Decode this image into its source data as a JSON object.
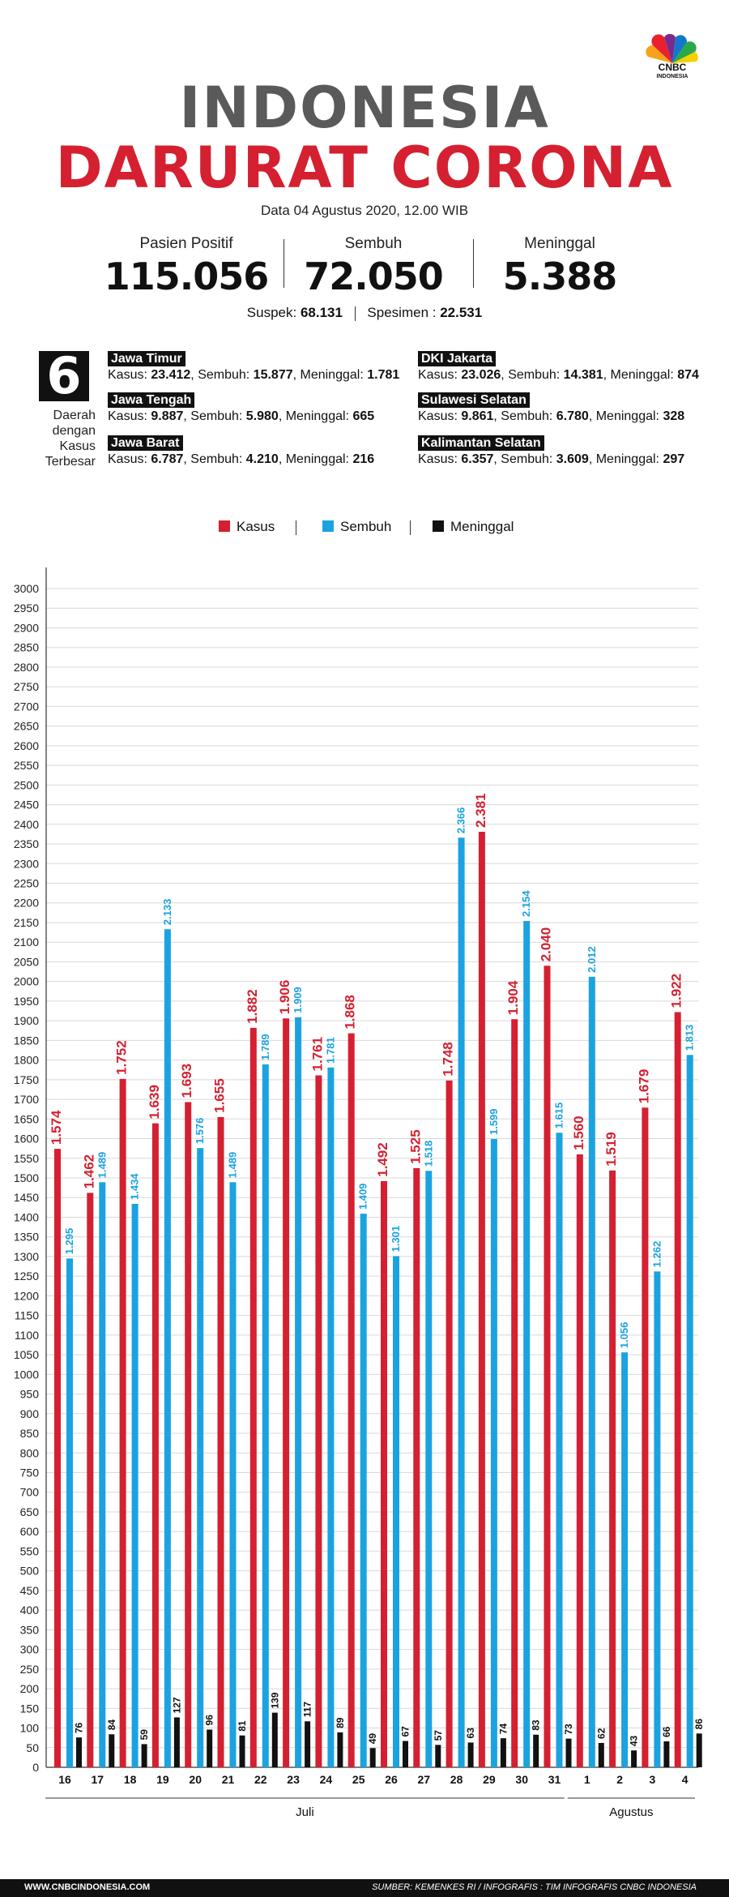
{
  "header": {
    "title_line1": "INDONESIA",
    "title_line2": "DARURAT CORONA",
    "date": "Data 04 Agustus 2020, 12.00 WIB",
    "logo_brand": "CNBC",
    "logo_sub": "INDONESIA"
  },
  "stats": [
    {
      "label": "Pasien Positif",
      "value": "115.056"
    },
    {
      "label": "Sembuh",
      "value": "72.050"
    },
    {
      "label": "Meninggal",
      "value": "5.388"
    }
  ],
  "secondary": {
    "suspek_label": "Suspek:",
    "suspek_value": "68.131",
    "spesimen_label": "Spesimen :",
    "spesimen_value": "22.531"
  },
  "regions_block": {
    "count": "6",
    "caption": [
      "Daerah",
      "dengan",
      "Kasus",
      "Terbesar"
    ],
    "regions": [
      {
        "name": "Jawa Timur",
        "kasus": "23.412",
        "sembuh": "15.877",
        "meninggal": "1.781"
      },
      {
        "name": "Jawa Tengah",
        "kasus": "9.887",
        "sembuh": "5.980",
        "meninggal": "665"
      },
      {
        "name": "Jawa Barat",
        "kasus": "6.787",
        "sembuh": "4.210",
        "meninggal": "216"
      },
      {
        "name": "DKI Jakarta",
        "kasus": "23.026",
        "sembuh": "14.381",
        "meninggal": "874"
      },
      {
        "name": "Sulawesi Selatan",
        "kasus": "9.861",
        "sembuh": "6.780",
        "meninggal": "328"
      },
      {
        "name": "Kalimantan Selatan",
        "kasus": "6.357",
        "sembuh": "3.609",
        "meninggal": "297"
      }
    ],
    "labels": {
      "kasus": "Kasus:",
      "sembuh": "Sembuh:",
      "meninggal": "Meninggal:"
    }
  },
  "chart_data": {
    "type": "bar",
    "categories": [
      "16",
      "17",
      "18",
      "19",
      "20",
      "21",
      "22",
      "23",
      "24",
      "25",
      "26",
      "27",
      "28",
      "29",
      "30",
      "31",
      "1",
      "2",
      "3",
      "4"
    ],
    "month_groups": [
      {
        "label": "Juli",
        "from": 0,
        "to": 15
      },
      {
        "label": "Agustus",
        "from": 16,
        "to": 19
      }
    ],
    "series": [
      {
        "name": "Kasus",
        "color": "#d42030",
        "values": [
          1574,
          1462,
          1752,
          1639,
          1693,
          1655,
          1882,
          1906,
          1761,
          1868,
          1492,
          1525,
          1748,
          2381,
          1904,
          2040,
          1560,
          1519,
          1679,
          1922
        ],
        "labels": [
          "1.574",
          "1.462",
          "1.752",
          "1.639",
          "1.693",
          "1.655",
          "1.882",
          "1.906",
          "1.761",
          "1.868",
          "1.492",
          "1.525",
          "1.748",
          "2.381",
          "1.904",
          "2.040",
          "1.560",
          "1.519",
          "1.679",
          "1.922"
        ]
      },
      {
        "name": "Sembuh",
        "color": "#1aa3e0",
        "values": [
          1295,
          1489,
          1434,
          2133,
          1576,
          1489,
          1789,
          1909,
          1781,
          1409,
          1301,
          1518,
          2366,
          1599,
          2154,
          1615,
          2012,
          1056,
          1262,
          1813
        ],
        "labels": [
          "1.295",
          "1.489",
          "1.434",
          "2.133",
          "1.576",
          "1.489",
          "1.789",
          "1.909",
          "1.781",
          "1.409",
          "1.301",
          "1.518",
          "2.366",
          "1.599",
          "2.154",
          "1.615",
          "2.012",
          "1.056",
          "1.262",
          "1.813"
        ]
      },
      {
        "name": "Meninggal",
        "color": "#111111",
        "values": [
          76,
          84,
          59,
          127,
          96,
          81,
          139,
          117,
          89,
          49,
          67,
          57,
          63,
          74,
          83,
          73,
          62,
          43,
          66,
          86
        ],
        "labels": [
          "76",
          "84",
          "59",
          "127",
          "96",
          "81",
          "139",
          "117",
          "89",
          "49",
          "67",
          "57",
          "63",
          "74",
          "83",
          "73",
          "62",
          "43",
          "66",
          "86"
        ]
      }
    ],
    "yticks": [
      0,
      50,
      100,
      150,
      200,
      250,
      300,
      350,
      400,
      450,
      500,
      550,
      600,
      650,
      700,
      750,
      800,
      850,
      900,
      950,
      1000,
      1050,
      1100,
      1150,
      1200,
      1250,
      1300,
      1350,
      1400,
      1450,
      1500,
      1550,
      1600,
      1650,
      1700,
      1750,
      1800,
      1850,
      1900,
      1950,
      2000,
      2050,
      2100,
      2150,
      2200,
      2250,
      2300,
      2350,
      2400,
      2450,
      2500,
      2550,
      2600,
      2650,
      2700,
      2750,
      2800,
      2850,
      2900,
      2950,
      3000
    ],
    "ylim": [
      0,
      3000
    ],
    "grid": true,
    "legend": "top-center"
  },
  "footer": {
    "website": "WWW.CNBCINDONESIA.COM",
    "source": "SUMBER: KEMENKES RI / INFOGRAFIS : TIM INFOGRAFIS CNBC INDONESIA"
  }
}
